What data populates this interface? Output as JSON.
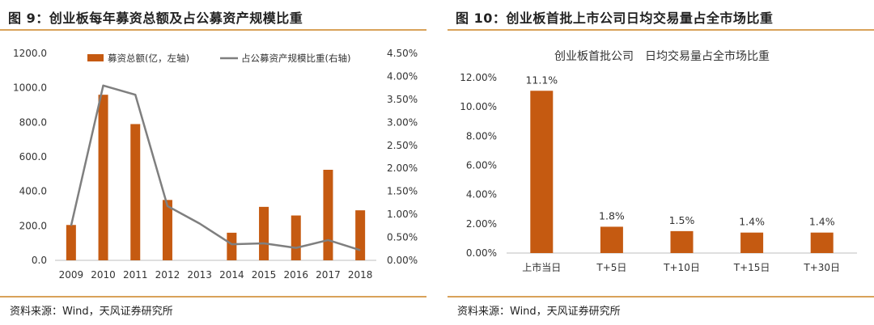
{
  "left": {
    "title": "图 9：创业板每年募资总额及占公募资产规模比重",
    "source": "资料来源：Wind，天风证券研究所"
  },
  "right": {
    "title": "图 10：创业板首批上市公司日均交易量占全市场比重",
    "source": "资料来源：Wind，天风证券研究所"
  },
  "colors": {
    "bar": "#c55a11",
    "line": "#7f7f7f",
    "rule": "#d9a25a"
  },
  "chart_data": [
    {
      "type": "bar",
      "categories": [
        "2009",
        "2010",
        "2011",
        "2012",
        "2013",
        "2014",
        "2015",
        "2016",
        "2017",
        "2018"
      ],
      "series": [
        {
          "name": "募资总额(亿，左轴)",
          "axis": "left",
          "values": [
            205,
            960,
            790,
            350,
            0,
            160,
            310,
            260,
            525,
            290
          ]
        },
        {
          "name": "占公募资产规模比重(右轴)",
          "axis": "right",
          "type": "line",
          "values": [
            0.0075,
            0.038,
            0.036,
            0.0118,
            0.008,
            0.0035,
            0.0037,
            0.0027,
            0.0044,
            0.0022
          ]
        }
      ],
      "ylim": [
        0,
        1200
      ],
      "yticks": [
        "0.0",
        "200.0",
        "400.0",
        "600.0",
        "800.0",
        "1000.0",
        "1200.0"
      ],
      "y2lim": [
        0,
        0.045
      ],
      "y2ticks": [
        "0.00%",
        "0.50%",
        "1.00%",
        "1.50%",
        "2.00%",
        "2.50%",
        "3.00%",
        "3.50%",
        "4.00%",
        "4.50%"
      ],
      "legend_position": "top"
    },
    {
      "type": "bar",
      "title": "创业板首批公司　日均交易量占全市场比重",
      "categories": [
        "上市当日",
        "T+5日",
        "T+10日",
        "T+15日",
        "T+30日"
      ],
      "values": [
        0.111,
        0.018,
        0.015,
        0.014,
        0.014
      ],
      "data_labels": [
        "11.1%",
        "1.8%",
        "1.5%",
        "1.4%",
        "1.4%"
      ],
      "ylim": [
        0,
        0.12
      ],
      "yticks": [
        "0.00%",
        "2.00%",
        "4.00%",
        "6.00%",
        "8.00%",
        "10.00%",
        "12.00%"
      ]
    }
  ]
}
